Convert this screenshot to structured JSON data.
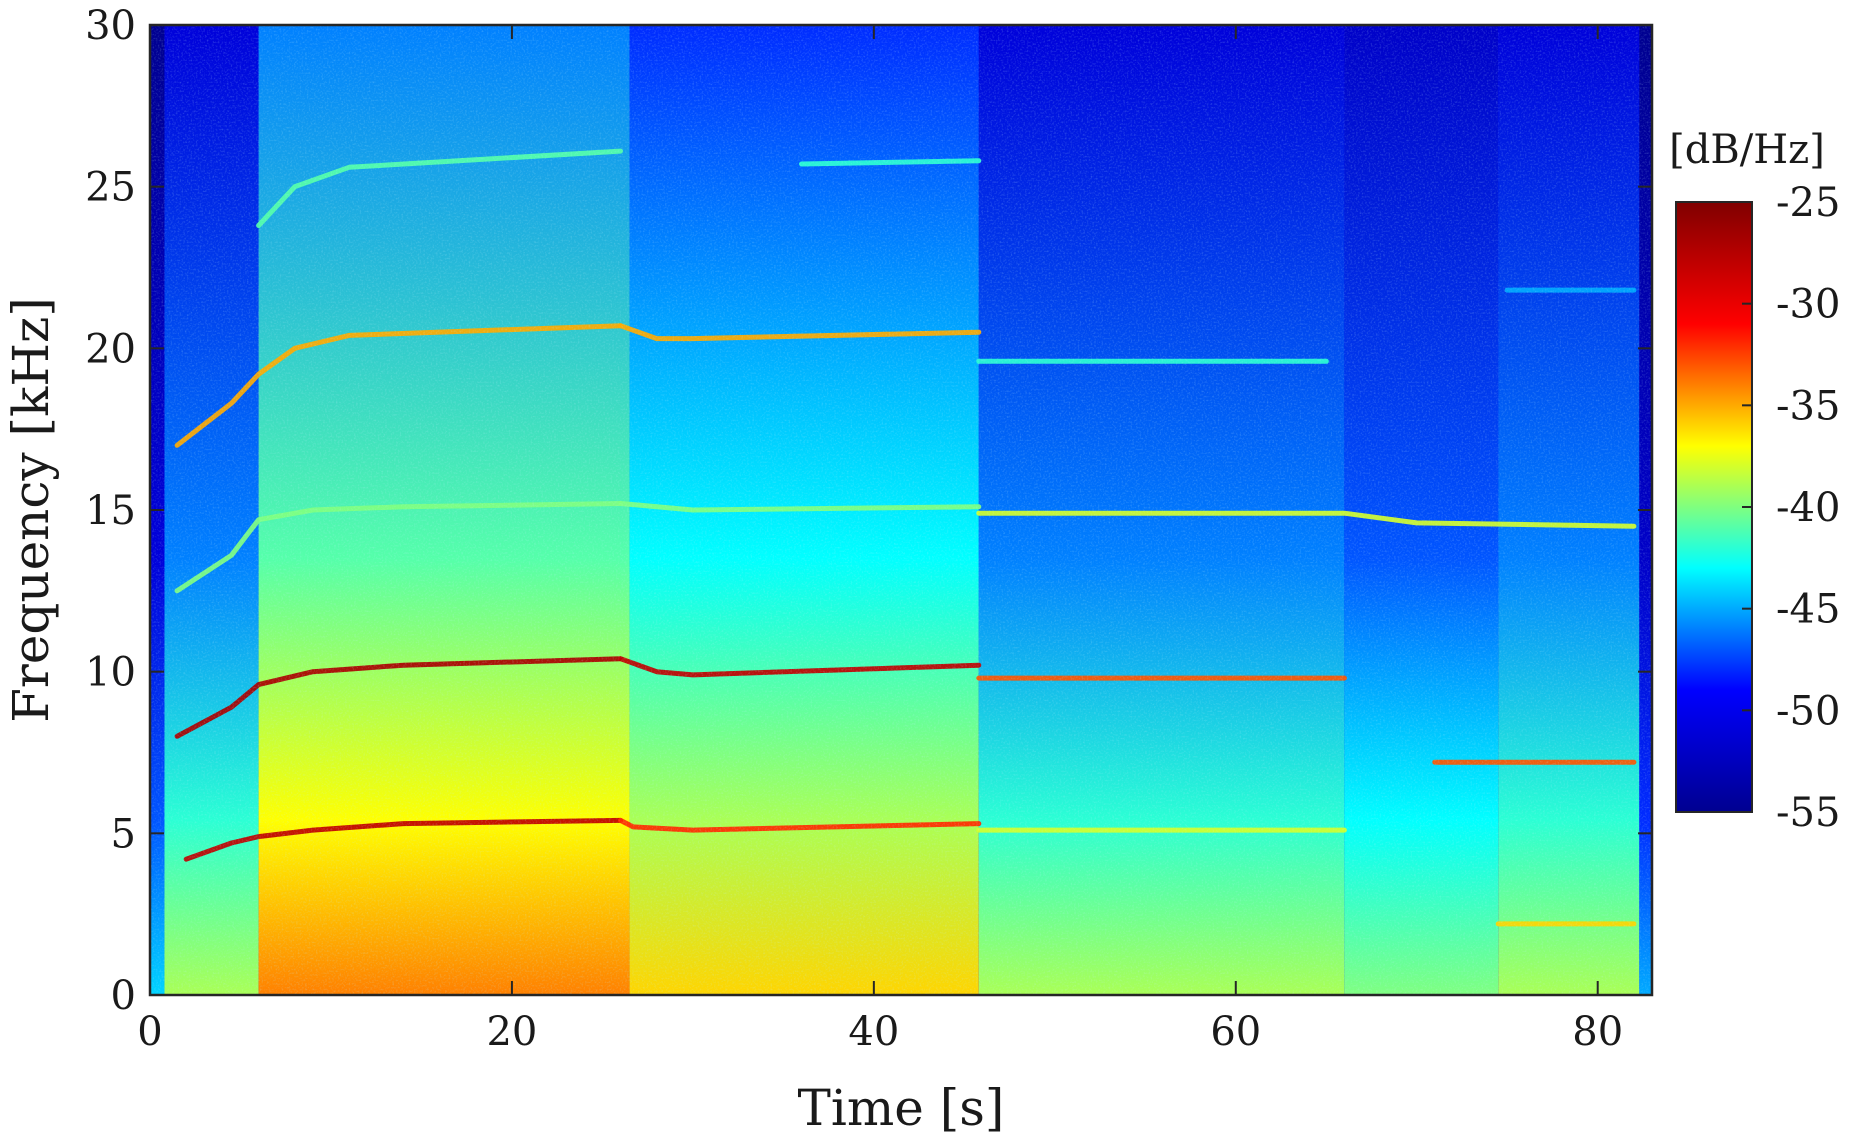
{
  "chart_data": {
    "type": "heatmap",
    "xlabel": "Time [s]",
    "ylabel": "Frequency [kHz]",
    "xlim": [
      0,
      83
    ],
    "ylim": [
      0,
      30
    ],
    "xticks": [
      0,
      20,
      40,
      60,
      80
    ],
    "yticks": [
      0,
      5,
      10,
      15,
      20,
      25,
      30
    ],
    "colorbar": {
      "label": "[dB/Hz]",
      "range": [
        -55,
        -25
      ],
      "ticks": [
        -25,
        -30,
        -35,
        -40,
        -45,
        -50,
        -55
      ],
      "colormap": "jet",
      "colors": [
        "#000090",
        "#0000ff",
        "#00ffff",
        "#ffff00",
        "#ff0000",
        "#800000"
      ]
    },
    "grid": false,
    "background_level_db": -50,
    "segments": [
      {
        "t_start": 0,
        "t_end": 0.8,
        "level_db": -53
      },
      {
        "t_start": 0.8,
        "t_end": 6,
        "level_db": -48
      },
      {
        "t_start": 6,
        "t_end": 26.5,
        "level_db": -43
      },
      {
        "t_start": 26.5,
        "t_end": 45.8,
        "level_db": -45
      },
      {
        "t_start": 45.8,
        "t_end": 66,
        "level_db": -48
      },
      {
        "t_start": 66,
        "t_end": 74.5,
        "level_db": -49
      },
      {
        "t_start": 74.5,
        "t_end": 82.3,
        "level_db": -48
      },
      {
        "t_start": 82.3,
        "t_end": 83,
        "level_db": -54
      }
    ],
    "tonal_lines": [
      {
        "t": [
          2.0,
          4.5,
          6.0,
          9.0,
          14.0,
          26.0
        ],
        "f": [
          4.2,
          4.7,
          4.9,
          5.1,
          5.3,
          5.4
        ],
        "level_db": -28
      },
      {
        "t": [
          26.0,
          26.7,
          30.0,
          45.8
        ],
        "f": [
          5.4,
          5.2,
          5.1,
          5.3
        ],
        "level_db": -32
      },
      {
        "t": [
          45.8,
          66.0
        ],
        "f": [
          5.1,
          5.1
        ],
        "level_db": -38
      },
      {
        "t": [
          1.5,
          4.5,
          6.0,
          9.0,
          14.0,
          26.0
        ],
        "f": [
          8.0,
          8.9,
          9.6,
          10.0,
          10.2,
          10.4
        ],
        "level_db": -27
      },
      {
        "t": [
          26.0,
          28.0,
          30.0,
          45.8
        ],
        "f": [
          10.4,
          10.0,
          9.9,
          10.2
        ],
        "level_db": -28
      },
      {
        "t": [
          45.8,
          66.0
        ],
        "f": [
          9.8,
          9.8
        ],
        "level_db": -33
      },
      {
        "t": [
          1.5,
          4.5,
          6.0,
          9.0,
          14.0,
          26.0
        ],
        "f": [
          12.5,
          13.6,
          14.7,
          15.0,
          15.1,
          15.2
        ],
        "level_db": -40
      },
      {
        "t": [
          26.0,
          30.0,
          45.8
        ],
        "f": [
          15.2,
          15.0,
          15.1
        ],
        "level_db": -40
      },
      {
        "t": [
          45.8,
          65.0,
          66.0,
          70.0,
          82.0
        ],
        "f": [
          14.9,
          14.9,
          14.9,
          14.6,
          14.5
        ],
        "level_db": -38
      },
      {
        "t": [
          1.5,
          4.5,
          6.0,
          8.0,
          11.0,
          26.0
        ],
        "f": [
          17.0,
          18.3,
          19.2,
          20.0,
          20.4,
          20.7
        ],
        "level_db": -35
      },
      {
        "t": [
          26.0,
          28.0,
          30.0,
          45.8
        ],
        "f": [
          20.7,
          20.3,
          20.3,
          20.5
        ],
        "level_db": -35
      },
      {
        "t": [
          45.8,
          65.0
        ],
        "f": [
          19.6,
          19.6
        ],
        "level_db": -42
      },
      {
        "t": [
          6.0,
          8.0,
          11.0,
          26.0
        ],
        "f": [
          23.8,
          25.0,
          25.6,
          26.1
        ],
        "level_db": -41
      },
      {
        "t": [
          36.0,
          45.8
        ],
        "f": [
          25.7,
          25.8
        ],
        "level_db": -42
      },
      {
        "t": [
          71.0,
          82.0
        ],
        "f": [
          7.2,
          7.2
        ],
        "level_db": -33
      },
      {
        "t": [
          74.5,
          82.0
        ],
        "f": [
          2.2,
          2.2
        ],
        "level_db": -36
      },
      {
        "t": [
          75.0,
          82.0
        ],
        "f": [
          21.8,
          21.8
        ],
        "level_db": -45
      }
    ]
  }
}
